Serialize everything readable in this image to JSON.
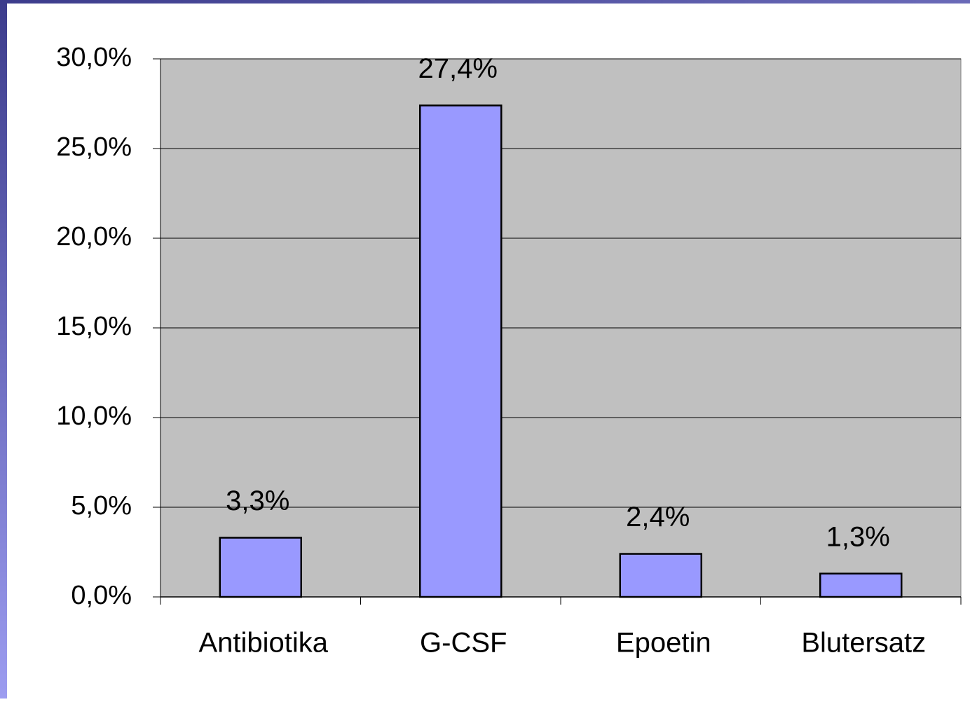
{
  "chart_data": {
    "type": "bar",
    "categories": [
      "Antibiotika",
      "G-CSF",
      "Epoetin",
      "Blutersatz"
    ],
    "values": [
      3.3,
      27.4,
      2.4,
      1.3
    ],
    "value_labels": [
      "3,3%",
      "27,4%",
      "2,4%",
      "1,3%"
    ],
    "color": "#9999ff",
    "ylim": [
      0,
      30
    ],
    "yticks": [
      {
        "value": 0,
        "label": "0,0%"
      },
      {
        "value": 5,
        "label": "5,0%"
      },
      {
        "value": 10,
        "label": "10,0%"
      },
      {
        "value": 15,
        "label": "15,0%"
      },
      {
        "value": 20,
        "label": "20,0%"
      },
      {
        "value": 25,
        "label": "25,0%"
      },
      {
        "value": 30,
        "label": "30,0%"
      }
    ],
    "grid": true
  }
}
